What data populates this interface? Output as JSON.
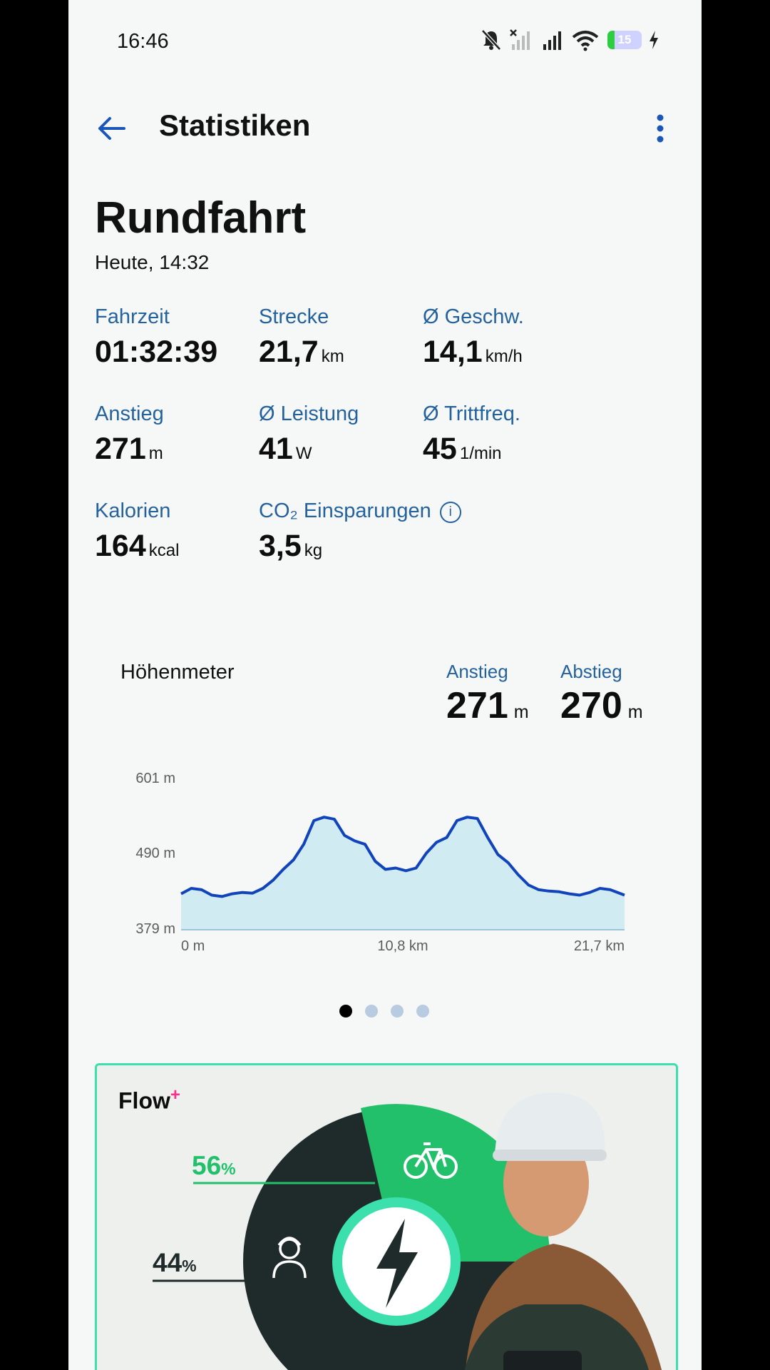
{
  "status": {
    "time": "16:46",
    "battery": "15"
  },
  "toolbar": {
    "title": "Statistiken"
  },
  "ride": {
    "title": "Rundfahrt",
    "date": "Heute, 14:32"
  },
  "stats": [
    {
      "label": "Fahrzeit",
      "value": "01:32:39",
      "unit": ""
    },
    {
      "label": "Strecke",
      "value": "21,7",
      "unit": "km"
    },
    {
      "label": "Ø Geschw.",
      "value": "14,1",
      "unit": "km/h"
    },
    {
      "label": "Anstieg",
      "value": "271",
      "unit": "m"
    },
    {
      "label": "Ø Leistung",
      "value": "41",
      "unit": "W"
    },
    {
      "label": "Ø Trittfreq.",
      "value": "45",
      "unit": "1/min"
    },
    {
      "label": "Kalorien",
      "value": "164",
      "unit": "kcal"
    },
    {
      "label": "CO₂ Einsparungen",
      "value": "3,5",
      "unit": "kg",
      "info_icon": "info-icon"
    }
  ],
  "elevation": {
    "title": "Höhenmeter",
    "ascent": {
      "label": "Anstieg",
      "value": "271",
      "unit": "m"
    },
    "descent": {
      "label": "Abstieg",
      "value": "270",
      "unit": "m"
    }
  },
  "chart_data": {
    "type": "area",
    "title": "",
    "y_ticks": [
      "601 m",
      "490 m",
      "379 m"
    ],
    "x_ticks": [
      "0 m",
      "10,8 km",
      "21,7 km"
    ],
    "ylim": [
      379,
      601
    ],
    "xlim": [
      0,
      21.7
    ],
    "x": [
      0,
      0.5,
      1,
      1.5,
      2,
      2.5,
      3,
      3.5,
      4,
      4.5,
      5,
      5.5,
      6,
      6.5,
      7,
      7.5,
      8,
      8.5,
      9,
      9.5,
      10,
      10.5,
      11,
      11.5,
      12,
      12.5,
      13,
      13.5,
      14,
      14.5,
      15,
      15.5,
      16,
      16.5,
      17,
      17.5,
      18,
      18.5,
      19,
      19.5,
      20,
      20.5,
      21,
      21.7
    ],
    "y": [
      432,
      440,
      438,
      430,
      428,
      432,
      434,
      433,
      440,
      452,
      468,
      482,
      505,
      540,
      545,
      542,
      518,
      510,
      505,
      480,
      468,
      470,
      466,
      470,
      492,
      508,
      515,
      540,
      545,
      543,
      515,
      490,
      478,
      460,
      445,
      438,
      436,
      435,
      432,
      430,
      434,
      440,
      438,
      430
    ],
    "fill_color": "#d0ecf2",
    "line_color": "#1144bb"
  },
  "pager": {
    "count": 4,
    "active": 0
  },
  "banner": {
    "brand": "Flow",
    "brand_plus": "+",
    "pct_bike": "56",
    "pct_rider": "44",
    "pct_sign": "%"
  }
}
